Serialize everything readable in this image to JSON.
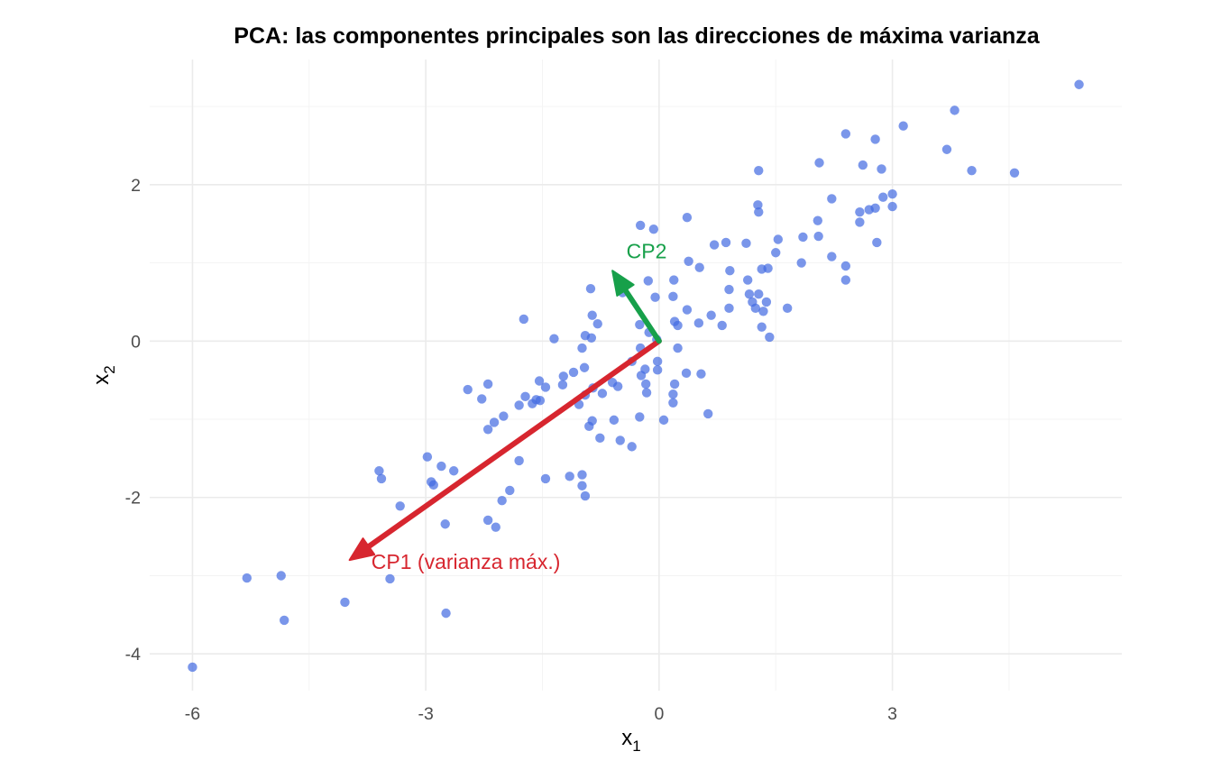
{
  "chart_data": {
    "type": "scatter",
    "title": "PCA: las componentes principales son las direcciones de máxima varianza",
    "xlabel": "x",
    "xlabel_sub": "1",
    "ylabel": "x",
    "ylabel_sub": "2",
    "xlim": [
      -6.55,
      5.95
    ],
    "ylim": [
      -4.47,
      3.6
    ],
    "x_ticks": [
      -6,
      -3,
      0,
      3
    ],
    "x_tick_labels": [
      "-6",
      "-3",
      "0",
      "3"
    ],
    "y_ticks": [
      -4,
      -2,
      0,
      2
    ],
    "y_tick_labels": [
      "-4",
      "-2",
      "0",
      "2"
    ],
    "x_minor_ticks": [
      -4.5,
      -1.5,
      1.5,
      4.5
    ],
    "y_minor_ticks": [
      -3,
      -1,
      1,
      3
    ],
    "grid": true,
    "legend": "none",
    "point_color": "#4169e1",
    "points": [
      [
        5.4,
        3.28
      ],
      [
        3.8,
        2.95
      ],
      [
        3.14,
        2.75
      ],
      [
        2.4,
        2.65
      ],
      [
        2.78,
        2.58
      ],
      [
        3.7,
        2.45
      ],
      [
        2.06,
        2.28
      ],
      [
        2.62,
        2.25
      ],
      [
        2.86,
        2.2
      ],
      [
        4.02,
        2.18
      ],
      [
        4.57,
        2.15
      ],
      [
        1.28,
        2.18
      ],
      [
        3.0,
        1.88
      ],
      [
        2.88,
        1.84
      ],
      [
        2.22,
        1.82
      ],
      [
        1.27,
        1.74
      ],
      [
        3.0,
        1.72
      ],
      [
        2.78,
        1.7
      ],
      [
        2.7,
        1.68
      ],
      [
        2.58,
        1.65
      ],
      [
        1.28,
        1.65
      ],
      [
        0.36,
        1.58
      ],
      [
        -0.24,
        1.48
      ],
      [
        -0.07,
        1.43
      ],
      [
        2.04,
        1.54
      ],
      [
        2.58,
        1.52
      ],
      [
        2.05,
        1.34
      ],
      [
        1.85,
        1.33
      ],
      [
        1.53,
        1.3
      ],
      [
        0.71,
        1.23
      ],
      [
        0.86,
        1.26
      ],
      [
        1.12,
        1.25
      ],
      [
        2.8,
        1.26
      ],
      [
        1.5,
        1.13
      ],
      [
        2.22,
        1.08
      ],
      [
        0.38,
        1.02
      ],
      [
        1.83,
        1.0
      ],
      [
        2.4,
        0.96
      ],
      [
        1.4,
        0.93
      ],
      [
        0.52,
        0.94
      ],
      [
        1.32,
        0.92
      ],
      [
        0.91,
        0.9
      ],
      [
        2.4,
        0.78
      ],
      [
        0.19,
        0.78
      ],
      [
        1.14,
        0.78
      ],
      [
        -0.14,
        0.77
      ],
      [
        0.18,
        0.57
      ],
      [
        -0.88,
        0.67
      ],
      [
        0.9,
        0.66
      ],
      [
        -0.47,
        0.62
      ],
      [
        1.16,
        0.6
      ],
      [
        1.28,
        0.6
      ],
      [
        -0.05,
        0.56
      ],
      [
        1.38,
        0.5
      ],
      [
        1.2,
        0.5
      ],
      [
        1.24,
        0.42
      ],
      [
        1.65,
        0.42
      ],
      [
        0.9,
        0.42
      ],
      [
        1.34,
        0.38
      ],
      [
        0.36,
        0.4
      ],
      [
        -0.86,
        0.33
      ],
      [
        0.67,
        0.33
      ],
      [
        0.2,
        0.25
      ],
      [
        -1.74,
        0.28
      ],
      [
        -0.79,
        0.22
      ],
      [
        0.51,
        0.23
      ],
      [
        -0.25,
        0.21
      ],
      [
        0.24,
        0.2
      ],
      [
        0.81,
        0.2
      ],
      [
        1.32,
        0.18
      ],
      [
        -0.13,
        0.11
      ],
      [
        -0.95,
        0.07
      ],
      [
        1.42,
        0.05
      ],
      [
        -0.87,
        0.04
      ],
      [
        -1.35,
        0.03
      ],
      [
        -0.03,
        0.02
      ],
      [
        -0.24,
        -0.09
      ],
      [
        0.24,
        -0.09
      ],
      [
        -0.99,
        -0.09
      ],
      [
        -0.35,
        -0.26
      ],
      [
        -0.02,
        -0.26
      ],
      [
        -0.96,
        -0.34
      ],
      [
        -0.18,
        -0.36
      ],
      [
        -0.02,
        -0.37
      ],
      [
        -1.1,
        -0.4
      ],
      [
        0.35,
        -0.41
      ],
      [
        0.54,
        -0.42
      ],
      [
        -0.23,
        -0.44
      ],
      [
        -1.23,
        -0.45
      ],
      [
        -1.54,
        -0.51
      ],
      [
        -0.6,
        -0.53
      ],
      [
        -2.2,
        -0.55
      ],
      [
        0.2,
        -0.55
      ],
      [
        -0.17,
        -0.55
      ],
      [
        -1.24,
        -0.56
      ],
      [
        -0.53,
        -0.58
      ],
      [
        -1.46,
        -0.59
      ],
      [
        -0.85,
        -0.6
      ],
      [
        -2.46,
        -0.62
      ],
      [
        -0.73,
        -0.67
      ],
      [
        0.18,
        -0.68
      ],
      [
        -0.16,
        -0.66
      ],
      [
        -0.95,
        -0.69
      ],
      [
        -1.72,
        -0.71
      ],
      [
        -1.58,
        -0.75
      ],
      [
        -2.28,
        -0.74
      ],
      [
        -1.53,
        -0.76
      ],
      [
        0.18,
        -0.79
      ],
      [
        -1.63,
        -0.8
      ],
      [
        -1.03,
        -0.81
      ],
      [
        -1.8,
        -0.82
      ],
      [
        -0.25,
        -0.97
      ],
      [
        0.63,
        -0.93
      ],
      [
        -2.0,
        -0.96
      ],
      [
        -0.58,
        -1.01
      ],
      [
        0.06,
        -1.01
      ],
      [
        -0.86,
        -1.02
      ],
      [
        -2.12,
        -1.04
      ],
      [
        -0.9,
        -1.09
      ],
      [
        -2.2,
        -1.13
      ],
      [
        -0.76,
        -1.24
      ],
      [
        -0.5,
        -1.27
      ],
      [
        -0.35,
        -1.35
      ],
      [
        -2.98,
        -1.48
      ],
      [
        -1.8,
        -1.53
      ],
      [
        -2.8,
        -1.6
      ],
      [
        -3.6,
        -1.66
      ],
      [
        -2.64,
        -1.66
      ],
      [
        -1.15,
        -1.73
      ],
      [
        -0.99,
        -1.71
      ],
      [
        -1.46,
        -1.76
      ],
      [
        -3.57,
        -1.76
      ],
      [
        -2.93,
        -1.8
      ],
      [
        -2.9,
        -1.84
      ],
      [
        -0.99,
        -1.85
      ],
      [
        -1.92,
        -1.91
      ],
      [
        -0.95,
        -1.98
      ],
      [
        -2.02,
        -2.04
      ],
      [
        -3.33,
        -2.11
      ],
      [
        -2.2,
        -2.29
      ],
      [
        -2.75,
        -2.34
      ],
      [
        -2.1,
        -2.38
      ],
      [
        -5.3,
        -3.03
      ],
      [
        -4.86,
        -3.0
      ],
      [
        -3.46,
        -3.04
      ],
      [
        -4.04,
        -3.34
      ],
      [
        -4.82,
        -3.57
      ],
      [
        -2.74,
        -3.48
      ],
      [
        -6.0,
        -4.17
      ]
    ],
    "vectors": [
      {
        "label": "CP1 (varianza máx.)",
        "color": "#d7262f",
        "start": [
          0,
          0
        ],
        "end": [
          -3.98,
          -2.8
        ]
      },
      {
        "label": "CP2",
        "color": "#17a04a",
        "start": [
          0,
          0
        ],
        "end": [
          -0.6,
          0.9
        ]
      }
    ],
    "annotations": [
      {
        "text": "CP2",
        "x": -0.42,
        "y": 1.15,
        "color": "#17a04a"
      },
      {
        "text": "CP1 (varianza máx.)",
        "x": -3.7,
        "y": -2.82,
        "color": "#d7262f"
      }
    ]
  }
}
